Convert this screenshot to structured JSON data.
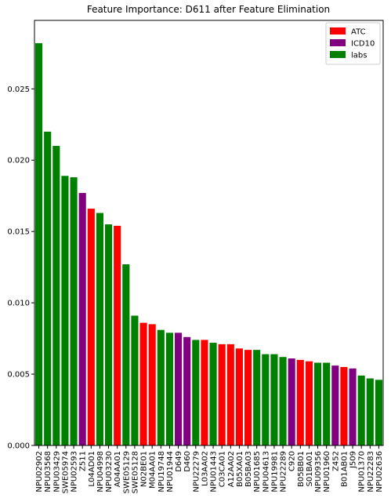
{
  "chart_data": {
    "type": "bar",
    "title": "Feature Importance: D611 after Feature Elimination",
    "xlabel": "",
    "ylabel": "",
    "ylim": [
      0,
      0.0298
    ],
    "yticks": [
      0.0,
      0.005,
      0.01,
      0.015,
      0.02,
      0.025
    ],
    "ytick_labels": [
      "0.000",
      "0.005",
      "0.010",
      "0.015",
      "0.020",
      "0.025"
    ],
    "grid": false,
    "legend_position": "top-right",
    "legend": [
      {
        "label": "ATC",
        "color": "#ff0000"
      },
      {
        "label": "ICD10",
        "color": "#800080"
      },
      {
        "label": "labs",
        "color": "#008000"
      }
    ],
    "group_colors": {
      "ATC": "#ff0000",
      "ICD10": "#800080",
      "labs": "#008000"
    },
    "categories": [
      "NPU02902",
      "NPU03568",
      "NPU03429",
      "SWE05974",
      "NPU02593",
      "Z511",
      "L04AD01",
      "NPU04998",
      "NPU03230",
      "A04AA01",
      "SWE05129",
      "SWE05128",
      "N02BE01",
      "M04AA01",
      "NPU19748",
      "NPU01944",
      "D649",
      "D460",
      "NPU22279",
      "L03AA02",
      "NPU01443",
      "C03CA01",
      "A12AA02",
      "B05XA01",
      "B05BA03",
      "NPU01685",
      "NPU04613",
      "NPU19981",
      "NPU22289",
      "C920",
      "B05BB01",
      "S01BA01",
      "NPU09356",
      "NPU01960",
      "Z452",
      "B01AB01",
      "J509",
      "NPU01370",
      "NPU22283",
      "NPU02636"
    ],
    "values": [
      0.0282,
      0.022,
      0.021,
      0.0189,
      0.0188,
      0.0177,
      0.0166,
      0.0163,
      0.0155,
      0.0154,
      0.0127,
      0.0091,
      0.0086,
      0.0085,
      0.0081,
      0.0079,
      0.0079,
      0.0076,
      0.0074,
      0.0074,
      0.0072,
      0.0071,
      0.0071,
      0.0068,
      0.0067,
      0.0067,
      0.0064,
      0.0064,
      0.0062,
      0.0061,
      0.006,
      0.0059,
      0.0058,
      0.0058,
      0.0056,
      0.0055,
      0.0054,
      0.0049,
      0.0047,
      0.0046
    ],
    "groups": [
      "labs",
      "labs",
      "labs",
      "labs",
      "labs",
      "ICD10",
      "ATC",
      "labs",
      "labs",
      "ATC",
      "labs",
      "labs",
      "ATC",
      "ATC",
      "labs",
      "labs",
      "ICD10",
      "ICD10",
      "labs",
      "ATC",
      "labs",
      "ATC",
      "ATC",
      "ATC",
      "ATC",
      "labs",
      "labs",
      "labs",
      "labs",
      "ICD10",
      "ATC",
      "ATC",
      "labs",
      "labs",
      "ICD10",
      "ATC",
      "ICD10",
      "labs",
      "labs",
      "labs"
    ]
  }
}
